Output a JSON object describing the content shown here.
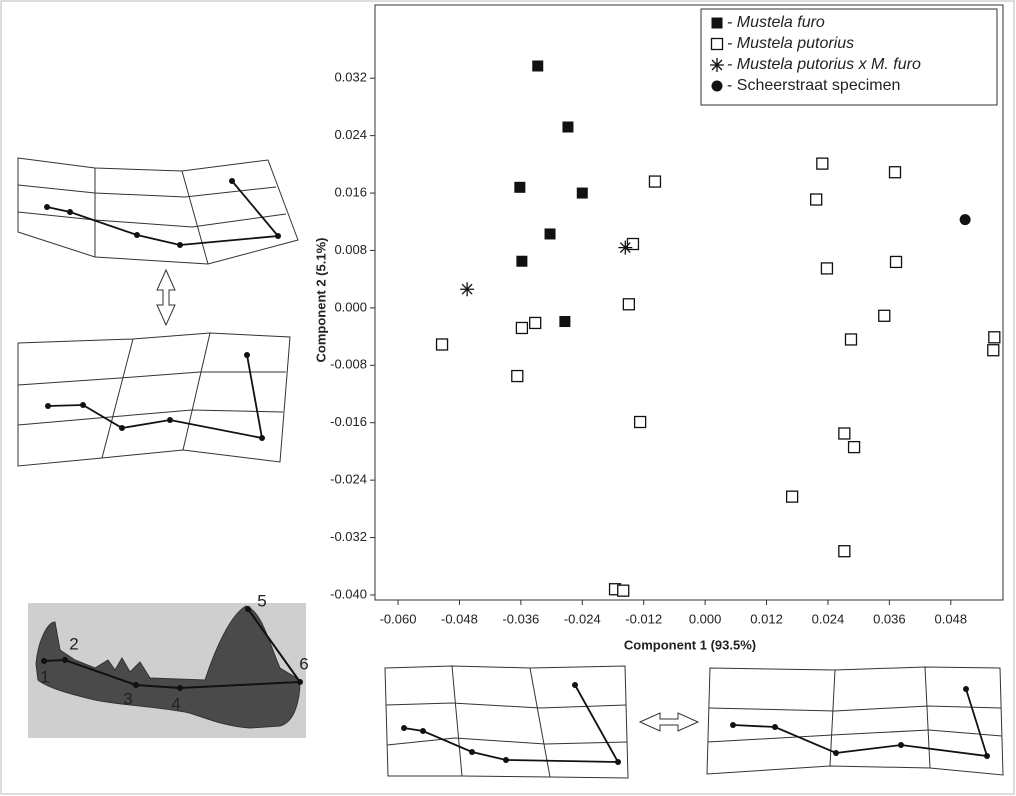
{
  "figure": {
    "landmark_labels": [
      "1",
      "2",
      "3",
      "4",
      "5",
      "6"
    ]
  },
  "chart_data": {
    "type": "scatter",
    "x_label": "Component 1 (93.5%)",
    "y_label": "Component 2 (5.1%)",
    "xlim": [
      -0.0645,
      0.0582
    ],
    "ylim": [
      -0.0407,
      0.0422
    ],
    "xticks": [
      {
        "value": -0.06,
        "label": "-0.060"
      },
      {
        "value": -0.048,
        "label": "-0.048"
      },
      {
        "value": -0.036,
        "label": "-0.036"
      },
      {
        "value": -0.024,
        "label": "-0.024"
      },
      {
        "value": -0.012,
        "label": "-0.012"
      },
      {
        "value": 0,
        "label": "0.000"
      },
      {
        "value": 0.012,
        "label": "0.012"
      },
      {
        "value": 0.024,
        "label": "0.024"
      },
      {
        "value": 0.036,
        "label": "0.036"
      },
      {
        "value": 0.048,
        "label": "0.048"
      }
    ],
    "yticks": [
      {
        "value": -0.04,
        "label": "-0.040"
      },
      {
        "value": -0.032,
        "label": "-0.032"
      },
      {
        "value": -0.024,
        "label": "-0.024"
      },
      {
        "value": -0.016,
        "label": "-0.016"
      },
      {
        "value": -0.008,
        "label": "-0.008"
      },
      {
        "value": 0,
        "label": "0.000"
      },
      {
        "value": 0.008,
        "label": "0.008"
      },
      {
        "value": 0.016,
        "label": "0.016"
      },
      {
        "value": 0.024,
        "label": "0.024"
      },
      {
        "value": 0.032,
        "label": "0.032"
      }
    ],
    "legend": "upper right",
    "series": [
      {
        "name": "- Mustela furo",
        "italic": true,
        "marker": "square-filled",
        "color": "#111111",
        "x": [
          -0.0327,
          -0.0268,
          -0.0362,
          -0.024,
          -0.0303,
          -0.0358,
          -0.0274
        ],
        "values": [
          0.0337,
          0.0252,
          0.0168,
          0.016,
          0.0103,
          0.0065,
          -0.0019
        ]
      },
      {
        "name": "- Mustela putorius",
        "italic": true,
        "marker": "square-open",
        "color": "#111111",
        "x": [
          -0.0514,
          -0.0358,
          -0.0332,
          -0.0367,
          -0.0098,
          -0.0141,
          -0.0149,
          -0.0127,
          -0.0176,
          -0.016,
          0.0229,
          0.0217,
          0.0238,
          0.0371,
          0.0373,
          0.035,
          0.0285,
          0.0272,
          0.0291,
          0.017,
          0.0272,
          0.0565,
          0.0563
        ],
        "values": [
          -0.0051,
          -0.0028,
          -0.0021,
          -0.0095,
          0.0176,
          0.0089,
          0.0005,
          -0.0159,
          -0.0392,
          -0.0394,
          0.0201,
          0.0151,
          0.0055,
          0.0189,
          0.0064,
          -0.0011,
          -0.0044,
          -0.0175,
          -0.0194,
          -0.0263,
          -0.0339,
          -0.0041,
          -0.0059
        ]
      },
      {
        "name": "- Mustela putorius x M. furo",
        "italic": true,
        "marker": "star",
        "color": "#111111",
        "x": [
          -0.0465,
          -0.0156
        ],
        "values": [
          0.0026,
          0.0084
        ]
      },
      {
        "name": "- Scheerstraat specimen",
        "italic": false,
        "marker": "circle",
        "color": "#111111",
        "x": [
          0.0508
        ],
        "values": [
          0.0123
        ]
      }
    ]
  }
}
